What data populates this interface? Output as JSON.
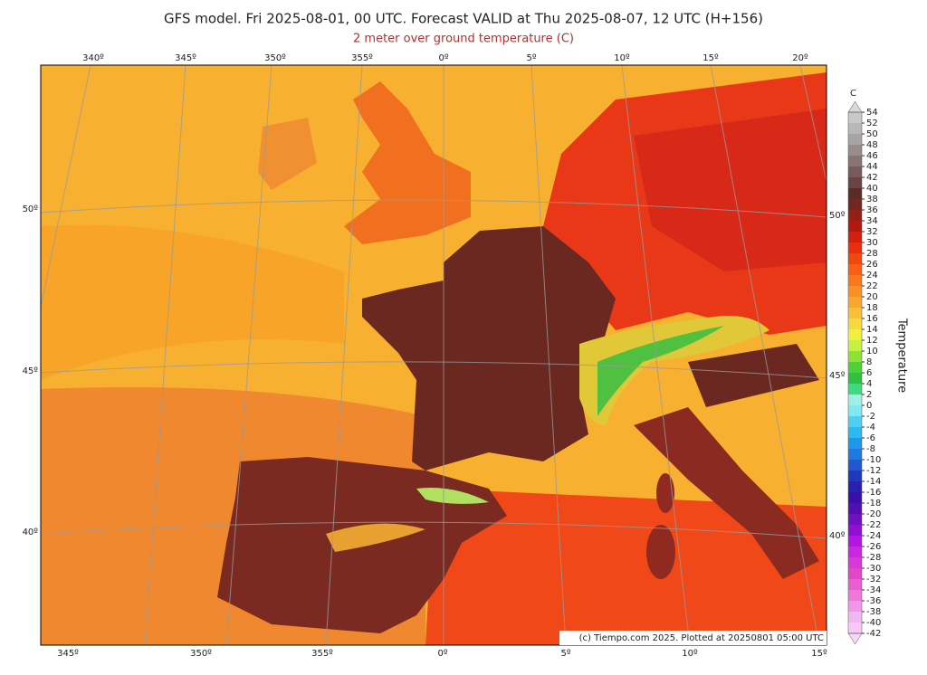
{
  "header": {
    "title": "GFS model. Fri 2025-08-01, 00 UTC. Forecast VALID at Thu 2025-08-07, 12 UTC (H+156)",
    "subtitle": "2 meter over ground temperature (C)"
  },
  "map": {
    "top_labels": [
      "340º",
      "345º",
      "350º",
      "355º",
      "0º",
      "5º",
      "10º",
      "15º",
      "20º"
    ],
    "bottom_labels": [
      "345º",
      "350º",
      "355º",
      "0º",
      "5º",
      "10º",
      "15º"
    ],
    "left_labels": [
      "50º",
      "45º",
      "40º"
    ],
    "right_labels": [
      "50º",
      "45º",
      "40º"
    ],
    "credit": "(c) Tiempo.com 2025. Plotted at 20250801 05:00 UTC"
  },
  "colorbar": {
    "unit": "C",
    "label": "Temperature",
    "ticks": [
      54,
      52,
      50,
      48,
      46,
      44,
      42,
      40,
      38,
      36,
      34,
      32,
      30,
      28,
      26,
      24,
      22,
      20,
      18,
      16,
      14,
      12,
      10,
      8,
      6,
      4,
      2,
      0,
      -2,
      -4,
      -6,
      -8,
      -10,
      -12,
      -14,
      -16,
      -18,
      -20,
      -22,
      -24,
      -26,
      -28,
      -30,
      -32,
      -34,
      -36,
      -38,
      -40,
      -42
    ],
    "over_color": "#d8d8d8",
    "under_color": "#f8d8f8",
    "colors": [
      "#c8c8c8",
      "#b8b8b8",
      "#a8a4a4",
      "#988c8c",
      "#887474",
      "#785c5c",
      "#684444",
      "#5a2c28",
      "#702820",
      "#902018",
      "#b01810",
      "#d02010",
      "#e83010",
      "#f04810",
      "#f86018",
      "#f87820",
      "#f89028",
      "#f8a830",
      "#f8c038",
      "#f8d840",
      "#f0f040",
      "#c8f040",
      "#90e038",
      "#50d038",
      "#30c040",
      "#40d880",
      "#a0f0e0",
      "#80e8f0",
      "#50d0f0",
      "#30b8f0",
      "#2098e8",
      "#2078e0",
      "#2058d0",
      "#2038c0",
      "#2820b0",
      "#3810a8",
      "#5010b0",
      "#7010c0",
      "#9010d0",
      "#b018e0",
      "#c828e0",
      "#d838d8",
      "#e048c8",
      "#e860d0",
      "#f078d8",
      "#f098e8",
      "#f0b8f0",
      "#f8c8f8"
    ]
  }
}
